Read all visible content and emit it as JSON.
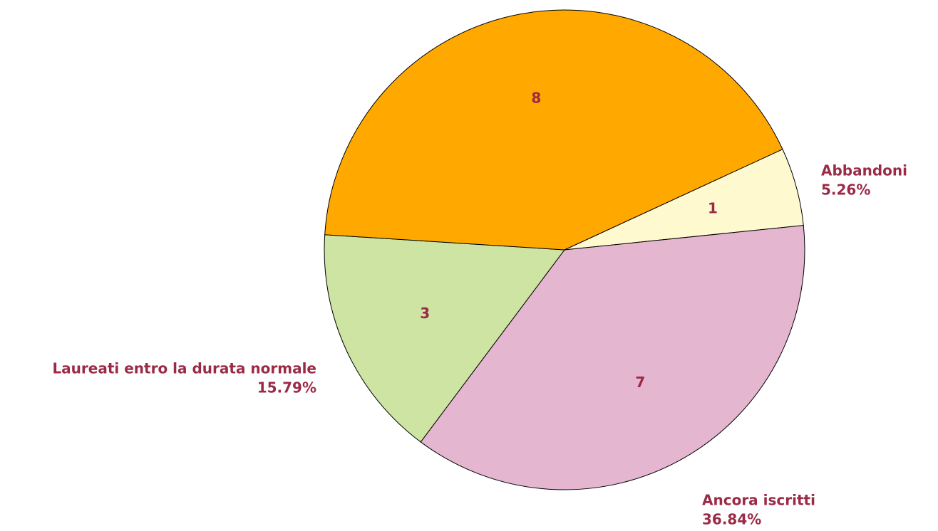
{
  "chart_data": {
    "type": "pie",
    "categories": [
      "Abbandoni",
      "Ancora iscritti",
      "Laureati entro la durata normale",
      null
    ],
    "values": [
      1,
      7,
      3,
      8
    ],
    "percent_labels": [
      "5.26%",
      "36.84%",
      "15.79%",
      null
    ],
    "colors": [
      "#fff9d0",
      "#e5b6cf",
      "#cde4a3",
      "#ffa900"
    ]
  }
}
